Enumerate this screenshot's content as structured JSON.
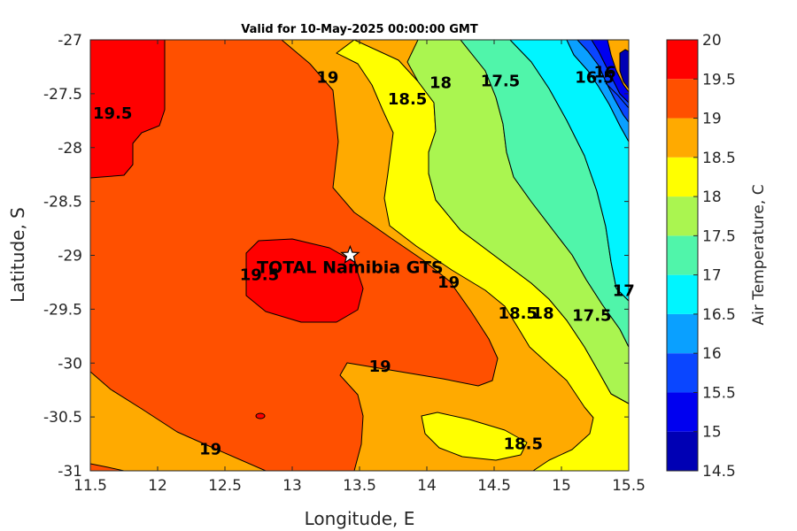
{
  "chart_data": {
    "type": "contour",
    "title": "Valid for 10-May-2025 00:00:00 GMT",
    "xlabel": "Longitude, E",
    "ylabel": "Latitude, S",
    "xlim": [
      11.5,
      15.5
    ],
    "ylim": [
      -31,
      -27
    ],
    "xticks": [
      "11.5",
      "12",
      "12.5",
      "13",
      "13.5",
      "14",
      "14.5",
      "15",
      "15.5"
    ],
    "yticks": [
      "-27",
      "-27.5",
      "-28",
      "-28.5",
      "-29",
      "-29.5",
      "-30",
      "-30.5",
      "-31"
    ],
    "colorbar": {
      "label": "Air Temperature, C",
      "levels": [
        14.5,
        15,
        15.5,
        16,
        16.5,
        17,
        17.5,
        18,
        18.5,
        19,
        19.5,
        20
      ],
      "ticks": [
        "14.5",
        "15",
        "15.5",
        "16",
        "16.5",
        "17",
        "17.5",
        "18",
        "18.5",
        "19",
        "19.5",
        "20"
      ],
      "colors": [
        "#0000b4",
        "#0000f0",
        "#0a46ff",
        "#0aa0ff",
        "#00f5ff",
        "#50f5aa",
        "#aaf550",
        "#ffff00",
        "#ffaa00",
        "#ff5000",
        "#ff0000",
        "#aa0000"
      ]
    },
    "contour_labels": [
      {
        "text": "19.5",
        "lon": 11.52,
        "lat": -27.68
      },
      {
        "text": "19",
        "lon": 13.18,
        "lat": -27.35
      },
      {
        "text": "18.5",
        "lon": 13.71,
        "lat": -27.55
      },
      {
        "text": "18",
        "lon": 14.02,
        "lat": -27.4
      },
      {
        "text": "17.5",
        "lon": 14.4,
        "lat": -27.38
      },
      {
        "text": "16.5",
        "lon": 15.1,
        "lat": -27.35
      },
      {
        "text": "16",
        "lon": 15.24,
        "lat": -27.3
      },
      {
        "text": "19.5",
        "lon": 12.61,
        "lat": -29.18
      },
      {
        "text": "19",
        "lon": 14.08,
        "lat": -29.25
      },
      {
        "text": "18.5",
        "lon": 14.53,
        "lat": -29.54
      },
      {
        "text": "18",
        "lon": 14.78,
        "lat": -29.54
      },
      {
        "text": "17.5",
        "lon": 15.08,
        "lat": -29.56
      },
      {
        "text": "17",
        "lon": 15.38,
        "lat": -29.33
      },
      {
        "text": "19",
        "lon": 13.57,
        "lat": -30.03
      },
      {
        "text": "19",
        "lon": 12.31,
        "lat": -30.8
      },
      {
        "text": "18.5",
        "lon": 14.57,
        "lat": -30.75
      }
    ],
    "site": {
      "name": "TOTAL Namibia GTS",
      "lon": 13.43,
      "lat": -29.0
    }
  }
}
